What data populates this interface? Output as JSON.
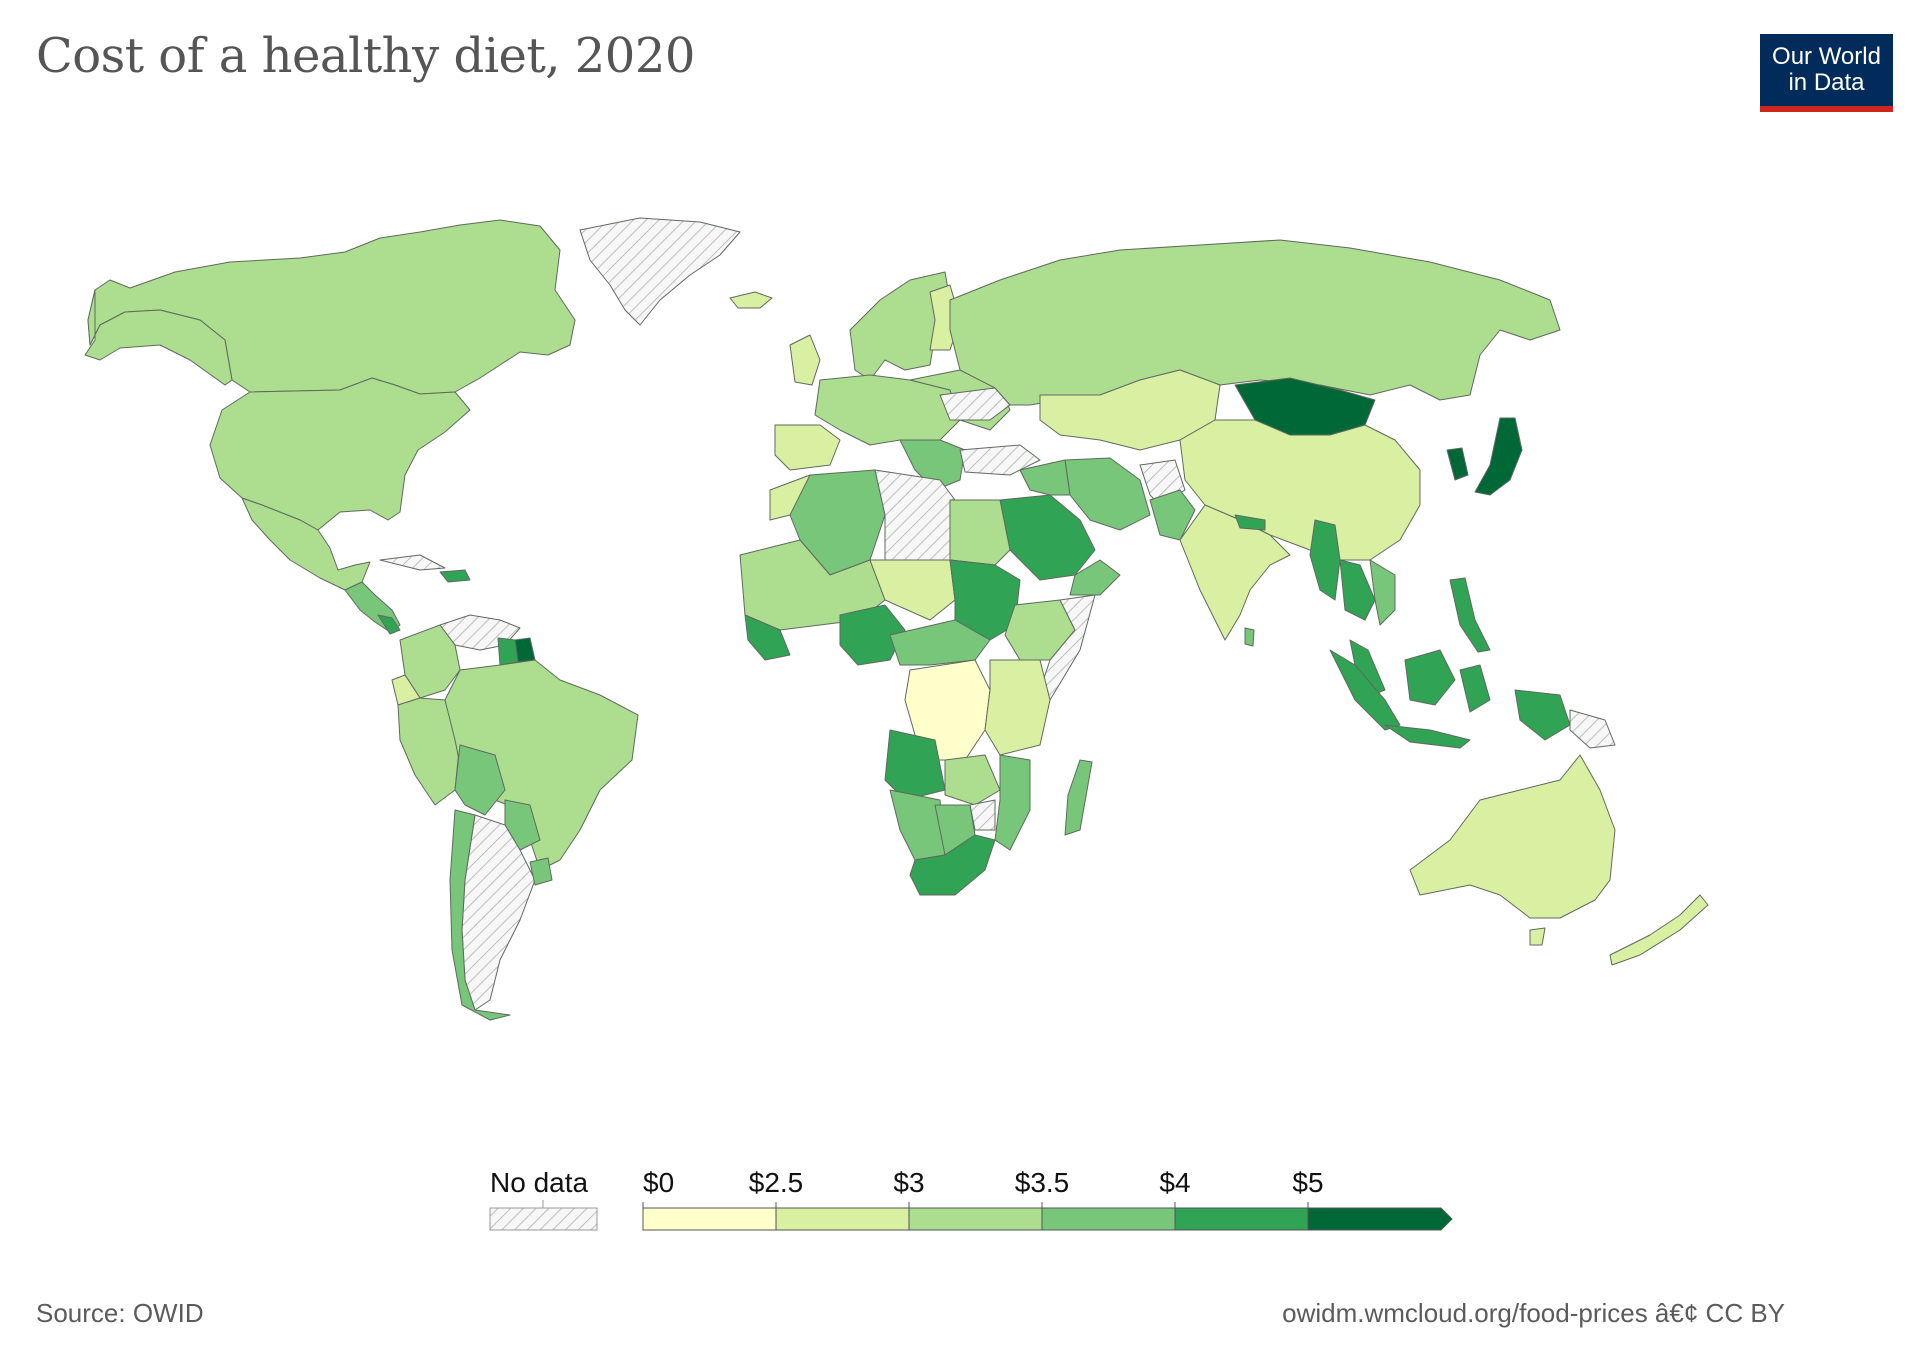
{
  "title": "Cost of a healthy diet, 2020",
  "logo": {
    "line1": "Our World",
    "line2": "in Data"
  },
  "source": "Source: OWID",
  "license": "owidm.wmcloud.org/food-prices â€¢ CC BY",
  "colors": {
    "no_data": "#f2f2f2",
    "ocean": "#ffffff",
    "bins": [
      "#ffffcc",
      "#d9f0a3",
      "#addd8e",
      "#78c679",
      "#31a354",
      "#006837"
    ]
  },
  "legend": {
    "no_data_label": "No data",
    "bin_labels": [
      "$0",
      "$2.5",
      "$3",
      "$3.5",
      "$4",
      "$5"
    ],
    "bin_edges": [
      0,
      2.5,
      3,
      3.5,
      4,
      5
    ]
  }
}
